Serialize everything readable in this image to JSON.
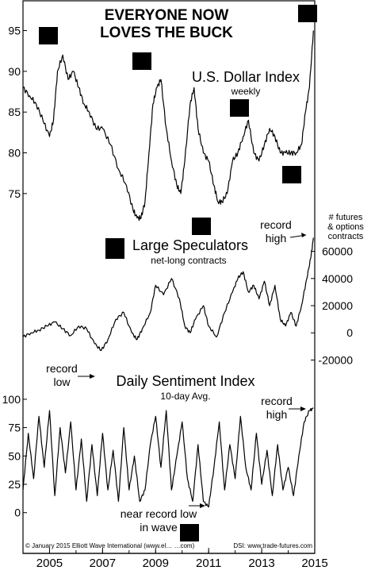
{
  "header": {
    "title_line1": "EVERYONE NOW",
    "title_line2": "LOVES THE BUCK"
  },
  "x_axis": {
    "years": [
      "2005",
      "2007",
      "2009",
      "2011",
      "2013",
      "2015"
    ]
  },
  "credits": {
    "left": "© January 2015 Elliott Wave International (www.el… …com)",
    "right": "DSI: www.trade-futures.com"
  },
  "chart_data": [
    {
      "type": "line",
      "title": "U.S. Dollar Index",
      "subtitle": "weekly",
      "x_range": [
        2004.0,
        2015.0
      ],
      "ylim": [
        70.5,
        97
      ],
      "yticks": [
        75,
        80,
        85,
        90,
        95
      ],
      "x": [
        2004.0,
        2004.25,
        2004.5,
        2004.75,
        2005.0,
        2005.15,
        2005.3,
        2005.5,
        2005.7,
        2005.9,
        2006.1,
        2006.3,
        2006.5,
        2006.75,
        2007.0,
        2007.3,
        2007.6,
        2007.9,
        2008.15,
        2008.3,
        2008.45,
        2008.6,
        2008.75,
        2008.9,
        2009.05,
        2009.2,
        2009.4,
        2009.6,
        2009.8,
        2009.95,
        2010.1,
        2010.3,
        2010.45,
        2010.6,
        2010.8,
        2011.0,
        2011.2,
        2011.35,
        2011.5,
        2011.7,
        2011.9,
        2012.1,
        2012.3,
        2012.5,
        2012.7,
        2012.9,
        2013.1,
        2013.3,
        2013.5,
        2013.7,
        2013.9,
        2014.1,
        2014.3,
        2014.5,
        2014.65,
        2014.8,
        2014.95
      ],
      "values": [
        88,
        87,
        86,
        84,
        82,
        84,
        90,
        92,
        89,
        90,
        88,
        86,
        85,
        83,
        83,
        81,
        78,
        76,
        73,
        72,
        72,
        74,
        80,
        86,
        88,
        89,
        83,
        79,
        76,
        75,
        79,
        86,
        88,
        83,
        80,
        79,
        76,
        74,
        74,
        75,
        79,
        80,
        82,
        84,
        80,
        79,
        81,
        83,
        82,
        80,
        80,
        80,
        80,
        81,
        85,
        88,
        95
      ]
    },
    {
      "type": "line",
      "title": "Large Speculators",
      "subtitle": "net-long contracts",
      "ylabel": "# futures & options contracts",
      "x_range": [
        2004.0,
        2015.0
      ],
      "ylim": [
        -25000,
        72000
      ],
      "yticks": [
        -20000,
        0,
        20000,
        40000,
        60000
      ],
      "ytick_labels": [
        "-20000",
        "0",
        "20000",
        "40000",
        "60000"
      ],
      "x": [
        2004.0,
        2004.3,
        2004.6,
        2004.9,
        2005.2,
        2005.5,
        2005.8,
        2006.1,
        2006.4,
        2006.7,
        2006.95,
        2007.2,
        2007.5,
        2007.8,
        2008.1,
        2008.3,
        2008.5,
        2008.8,
        2009.0,
        2009.3,
        2009.6,
        2009.9,
        2010.1,
        2010.3,
        2010.5,
        2010.8,
        2011.0,
        2011.3,
        2011.6,
        2011.9,
        2012.1,
        2012.3,
        2012.5,
        2012.7,
        2012.9,
        2013.1,
        2013.3,
        2013.5,
        2013.7,
        2013.9,
        2014.1,
        2014.3,
        2014.5,
        2014.7,
        2014.85,
        2014.95
      ],
      "values": [
        -3000,
        0,
        2000,
        5000,
        8000,
        3000,
        -2000,
        5000,
        3000,
        -8000,
        -13000,
        -5000,
        10000,
        15000,
        0,
        -5000,
        3000,
        15000,
        35000,
        28000,
        40000,
        25000,
        5000,
        0,
        10000,
        20000,
        5000,
        -3000,
        15000,
        30000,
        40000,
        45000,
        30000,
        35000,
        25000,
        38000,
        20000,
        35000,
        10000,
        5000,
        15000,
        5000,
        20000,
        40000,
        55000,
        70000
      ]
    },
    {
      "type": "line",
      "title": "Daily Sentiment Index",
      "subtitle": "10-day Avg.",
      "x_range": [
        2004.0,
        2015.0
      ],
      "ylim": [
        -10,
        102
      ],
      "yticks": [
        0,
        25,
        50,
        75,
        100
      ],
      "x": [
        2004.0,
        2004.2,
        2004.4,
        2004.6,
        2004.8,
        2005.0,
        2005.2,
        2005.4,
        2005.6,
        2005.8,
        2006.0,
        2006.2,
        2006.4,
        2006.6,
        2006.8,
        2007.0,
        2007.2,
        2007.4,
        2007.6,
        2007.8,
        2008.0,
        2008.2,
        2008.4,
        2008.6,
        2008.8,
        2009.0,
        2009.2,
        2009.4,
        2009.6,
        2009.8,
        2010.0,
        2010.2,
        2010.4,
        2010.6,
        2010.8,
        2011.0,
        2011.2,
        2011.4,
        2011.6,
        2011.8,
        2012.0,
        2012.2,
        2012.4,
        2012.6,
        2012.8,
        2013.0,
        2013.2,
        2013.4,
        2013.6,
        2013.8,
        2014.0,
        2014.2,
        2014.4,
        2014.6,
        2014.8,
        2014.95
      ],
      "values": [
        20,
        70,
        30,
        85,
        40,
        90,
        15,
        75,
        35,
        80,
        20,
        65,
        10,
        60,
        15,
        70,
        20,
        55,
        10,
        75,
        20,
        50,
        10,
        20,
        60,
        85,
        40,
        90,
        20,
        50,
        80,
        30,
        10,
        60,
        10,
        5,
        40,
        80,
        20,
        60,
        30,
        85,
        40,
        20,
        70,
        25,
        55,
        15,
        60,
        20,
        40,
        15,
        50,
        80,
        90,
        92
      ]
    }
  ],
  "annotations": {
    "record_high_specs_line1": "record",
    "record_high_specs_line2": "high",
    "record_low_line1": "record",
    "record_low_line2": "low",
    "record_high_dsi_line1": "record",
    "record_high_dsi_line2": "high",
    "near_record_low_line1": "near record low",
    "near_record_low_line2": "in wave"
  }
}
